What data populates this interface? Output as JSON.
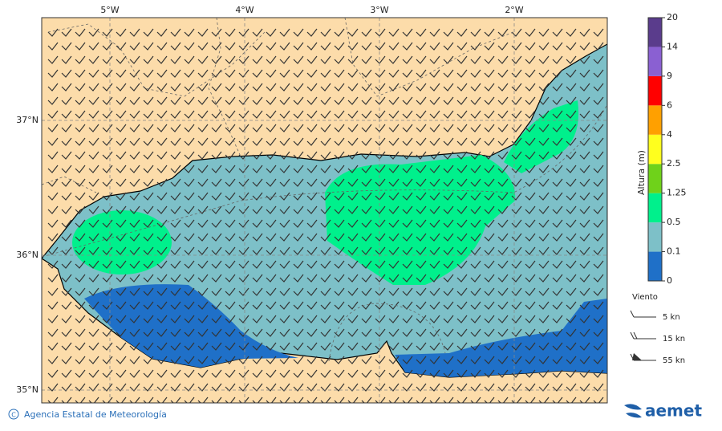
{
  "map": {
    "lon_labels": [
      "5°W",
      "4°W",
      "3°W",
      "2°W"
    ],
    "lat_labels": [
      "37°N",
      "36°N",
      "35°N"
    ]
  },
  "colorbar": {
    "title": "Altura (m)",
    "levels": [
      0,
      0.1,
      0.5,
      1.25,
      2.5,
      4,
      6,
      9,
      14,
      20
    ],
    "colors": [
      "#1f70c8",
      "#7dc0c8",
      "#00f08c",
      "#6fd21a",
      "#ffff1e",
      "#ffa000",
      "#ff0000",
      "#8a60d2",
      "#5a3c8c"
    ]
  },
  "wind_legend": {
    "title": "Viento",
    "entries": [
      "5 kn",
      "15 kn",
      "55 kn"
    ]
  },
  "footer": {
    "credit": "Agencia Estatal de Meteorología",
    "logo": "aemet"
  }
}
